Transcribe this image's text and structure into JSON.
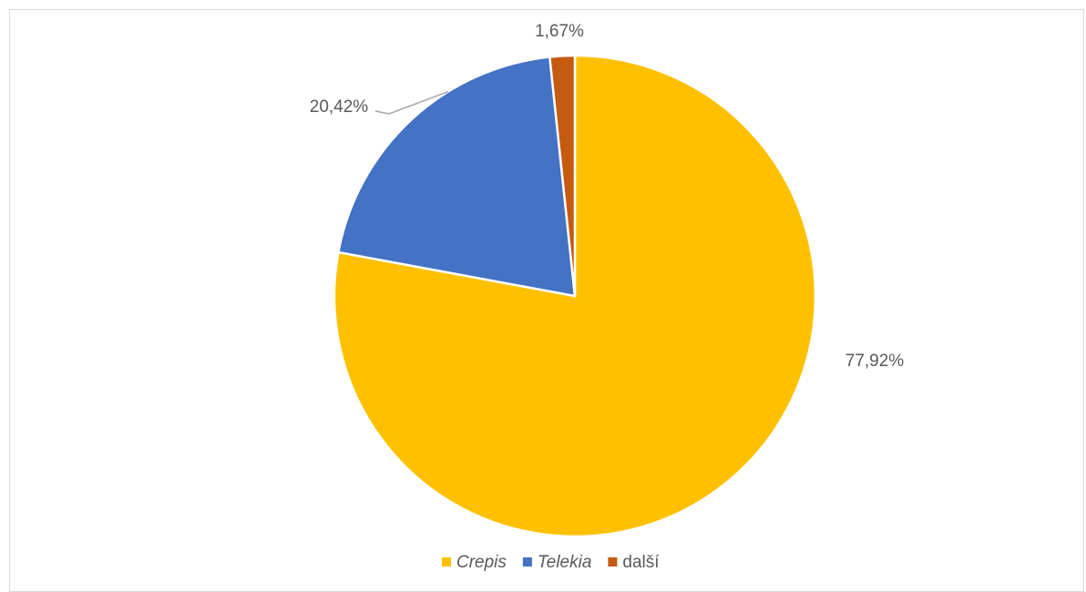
{
  "chart_data": {
    "type": "pie",
    "title": "",
    "slices": [
      {
        "name": "Crepis",
        "value": 77.92,
        "label": "77,92%",
        "color": "#FFC000",
        "italic": true
      },
      {
        "name": "Telekia",
        "value": 20.42,
        "label": "20,42%",
        "color": "#4472C4",
        "italic": true
      },
      {
        "name": "další",
        "value": 1.67,
        "label": "1,67%",
        "color": "#C55A11",
        "italic": false
      }
    ],
    "legend": {
      "placement": "bottom"
    }
  }
}
